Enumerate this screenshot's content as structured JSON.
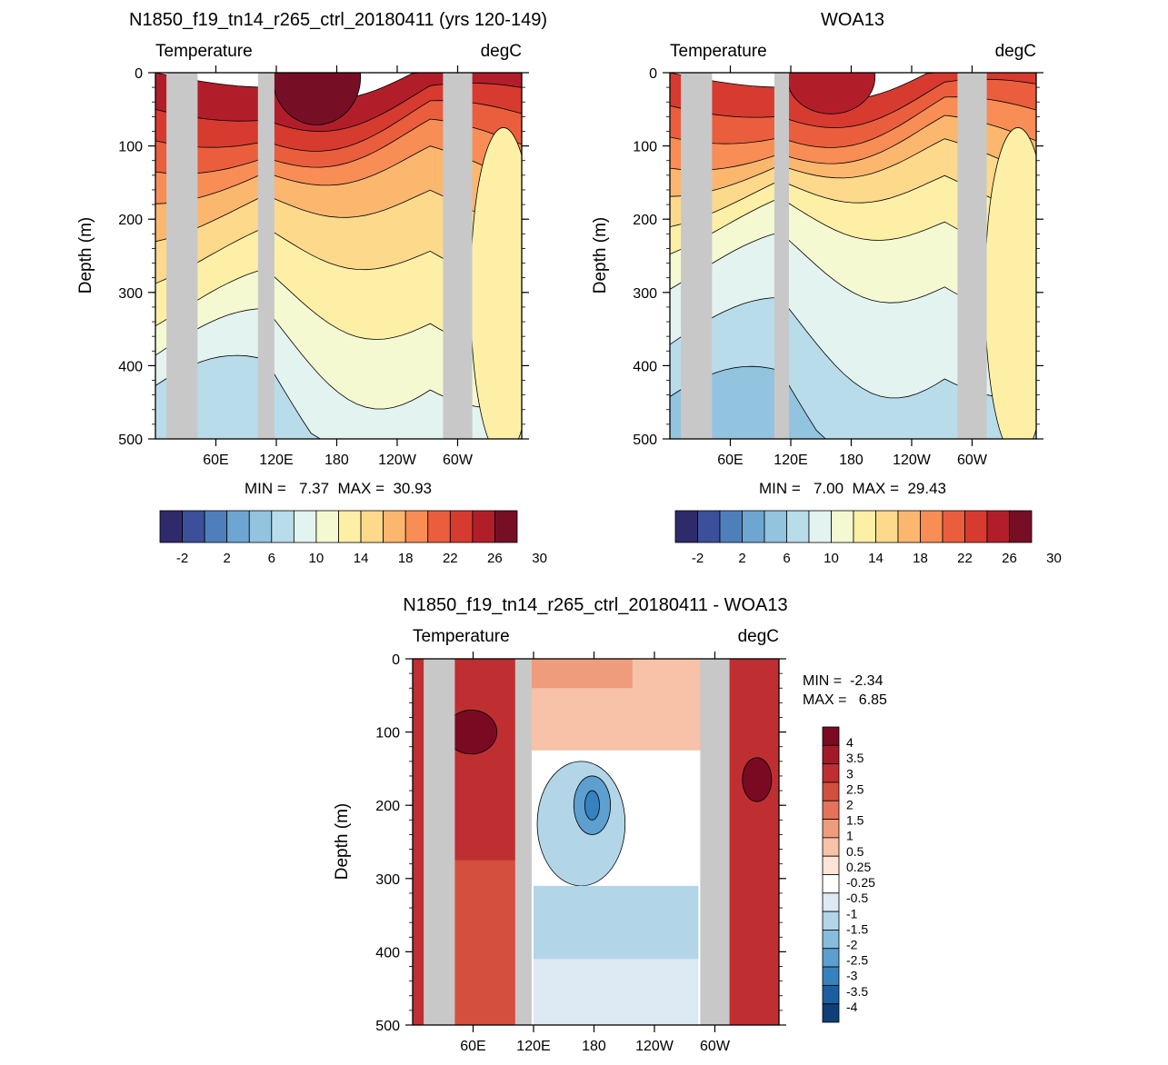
{
  "colors": {
    "land": "#c8c8c8",
    "model_palette": [
      "#2f2a6a",
      "#3b4f9a",
      "#4f7fba",
      "#6ea6d2",
      "#92c3df",
      "#b9dcea",
      "#e3f3f0",
      "#f5f9d2",
      "#fdf0a6",
      "#fdd98c",
      "#fcb76f",
      "#f88d55",
      "#ea5e3d",
      "#d73a2f",
      "#b11e2a",
      "#760f26"
    ],
    "diff_palette": [
      "#0e3f78",
      "#1c5fa0",
      "#3582bf",
      "#5d9fcf",
      "#86bcdc",
      "#b3d5e8",
      "#dde9f3",
      "#ffffff",
      "#fde4d6",
      "#f7c2a7",
      "#ef9c7c",
      "#e4735a",
      "#d3503f",
      "#bf2f32",
      "#a3192a",
      "#7a0a22"
    ]
  },
  "chart_data": [
    {
      "type": "heatmap",
      "title": "N1850_f19_tn14_r265_ctrl_20180411 (yrs 120-149)",
      "left_label": "Temperature",
      "right_label": "degC",
      "ylabel": "Depth (m)",
      "ylim": [
        0,
        500
      ],
      "y_ticks": [
        "0",
        "100",
        "200",
        "300",
        "400",
        "500"
      ],
      "x_ticks": [
        "60E",
        "120E",
        "180",
        "120W",
        "60W"
      ],
      "stats": "MIN =   7.37  MAX =  30.93",
      "colorbar_labels": [
        "-2",
        "2",
        "6",
        "10",
        "14",
        "18",
        "22",
        "26",
        "30"
      ],
      "min": 7.37,
      "max": 30.93
    },
    {
      "type": "heatmap",
      "title": "WOA13",
      "left_label": "Temperature",
      "right_label": "degC",
      "ylabel": "Depth (m)",
      "ylim": [
        0,
        500
      ],
      "y_ticks": [
        "0",
        "100",
        "200",
        "300",
        "400",
        "500"
      ],
      "x_ticks": [
        "60E",
        "120E",
        "180",
        "120W",
        "60W"
      ],
      "stats": "MIN =   7.00  MAX =  29.43",
      "colorbar_labels": [
        "-2",
        "2",
        "6",
        "10",
        "14",
        "18",
        "22",
        "26",
        "30"
      ],
      "min": 7.0,
      "max": 29.43
    },
    {
      "type": "heatmap",
      "title": "N1850_f19_tn14_r265_ctrl_20180411 - WOA13",
      "left_label": "Temperature",
      "right_label": "degC",
      "ylabel": "Depth (m)",
      "ylim": [
        0,
        500
      ],
      "y_ticks": [
        "0",
        "100",
        "200",
        "300",
        "400",
        "500"
      ],
      "x_ticks": [
        "60E",
        "120E",
        "180",
        "120W",
        "60W"
      ],
      "stats_min": "MIN =  -2.34",
      "stats_max": "MAX =   6.85",
      "colorbar_labels": [
        "4",
        "3.5",
        "3",
        "2.5",
        "2",
        "1.5",
        "1",
        "0.5",
        "0.25",
        "-0.25",
        "-0.5",
        "-1",
        "-1.5",
        "-2",
        "-2.5",
        "-3",
        "-3.5",
        "-4"
      ],
      "min": -2.34,
      "max": 6.85
    }
  ]
}
